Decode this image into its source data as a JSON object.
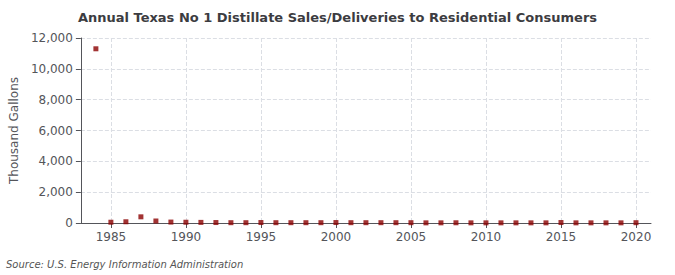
{
  "chart_data": {
    "type": "scatter",
    "title": "Annual Texas No 1 Distillate Sales/Deliveries to Residential Consumers",
    "ylabel": "Thousand Gallons",
    "annotation": "Source: U.S. Energy Information Administration",
    "x": [
      1984,
      1985,
      1986,
      1987,
      1988,
      1989,
      1990,
      1991,
      1992,
      1993,
      1994,
      1995,
      1996,
      1997,
      1998,
      1999,
      2000,
      2001,
      2002,
      2003,
      2004,
      2005,
      2006,
      2007,
      2008,
      2009,
      2010,
      2011,
      2012,
      2013,
      2014,
      2015,
      2016,
      2017,
      2018,
      2019,
      2020
    ],
    "values": [
      11300,
      50,
      80,
      400,
      130,
      60,
      50,
      40,
      30,
      20,
      20,
      30,
      20,
      20,
      20,
      20,
      30,
      20,
      20,
      20,
      20,
      20,
      10,
      10,
      15,
      10,
      10,
      10,
      10,
      10,
      10,
      30,
      10,
      10,
      10,
      10,
      20
    ],
    "color": "#8b0000",
    "marker": "square",
    "grid": true,
    "xlim": [
      1983,
      2021
    ],
    "xticks": [
      1985,
      1990,
      1995,
      2000,
      2005,
      2010,
      2015,
      2020
    ],
    "ylim": [
      0,
      12000
    ],
    "yticks": [
      0,
      {
        "value": 2000,
        "label": "2,000"
      },
      {
        "value": 4000,
        "label": "4,000"
      },
      {
        "value": 6000,
        "label": "6,000"
      },
      {
        "value": 8000,
        "label": "8,000"
      },
      {
        "value": 10000,
        "label": "10,000"
      },
      {
        "value": 12000,
        "label": "12,000"
      }
    ]
  }
}
